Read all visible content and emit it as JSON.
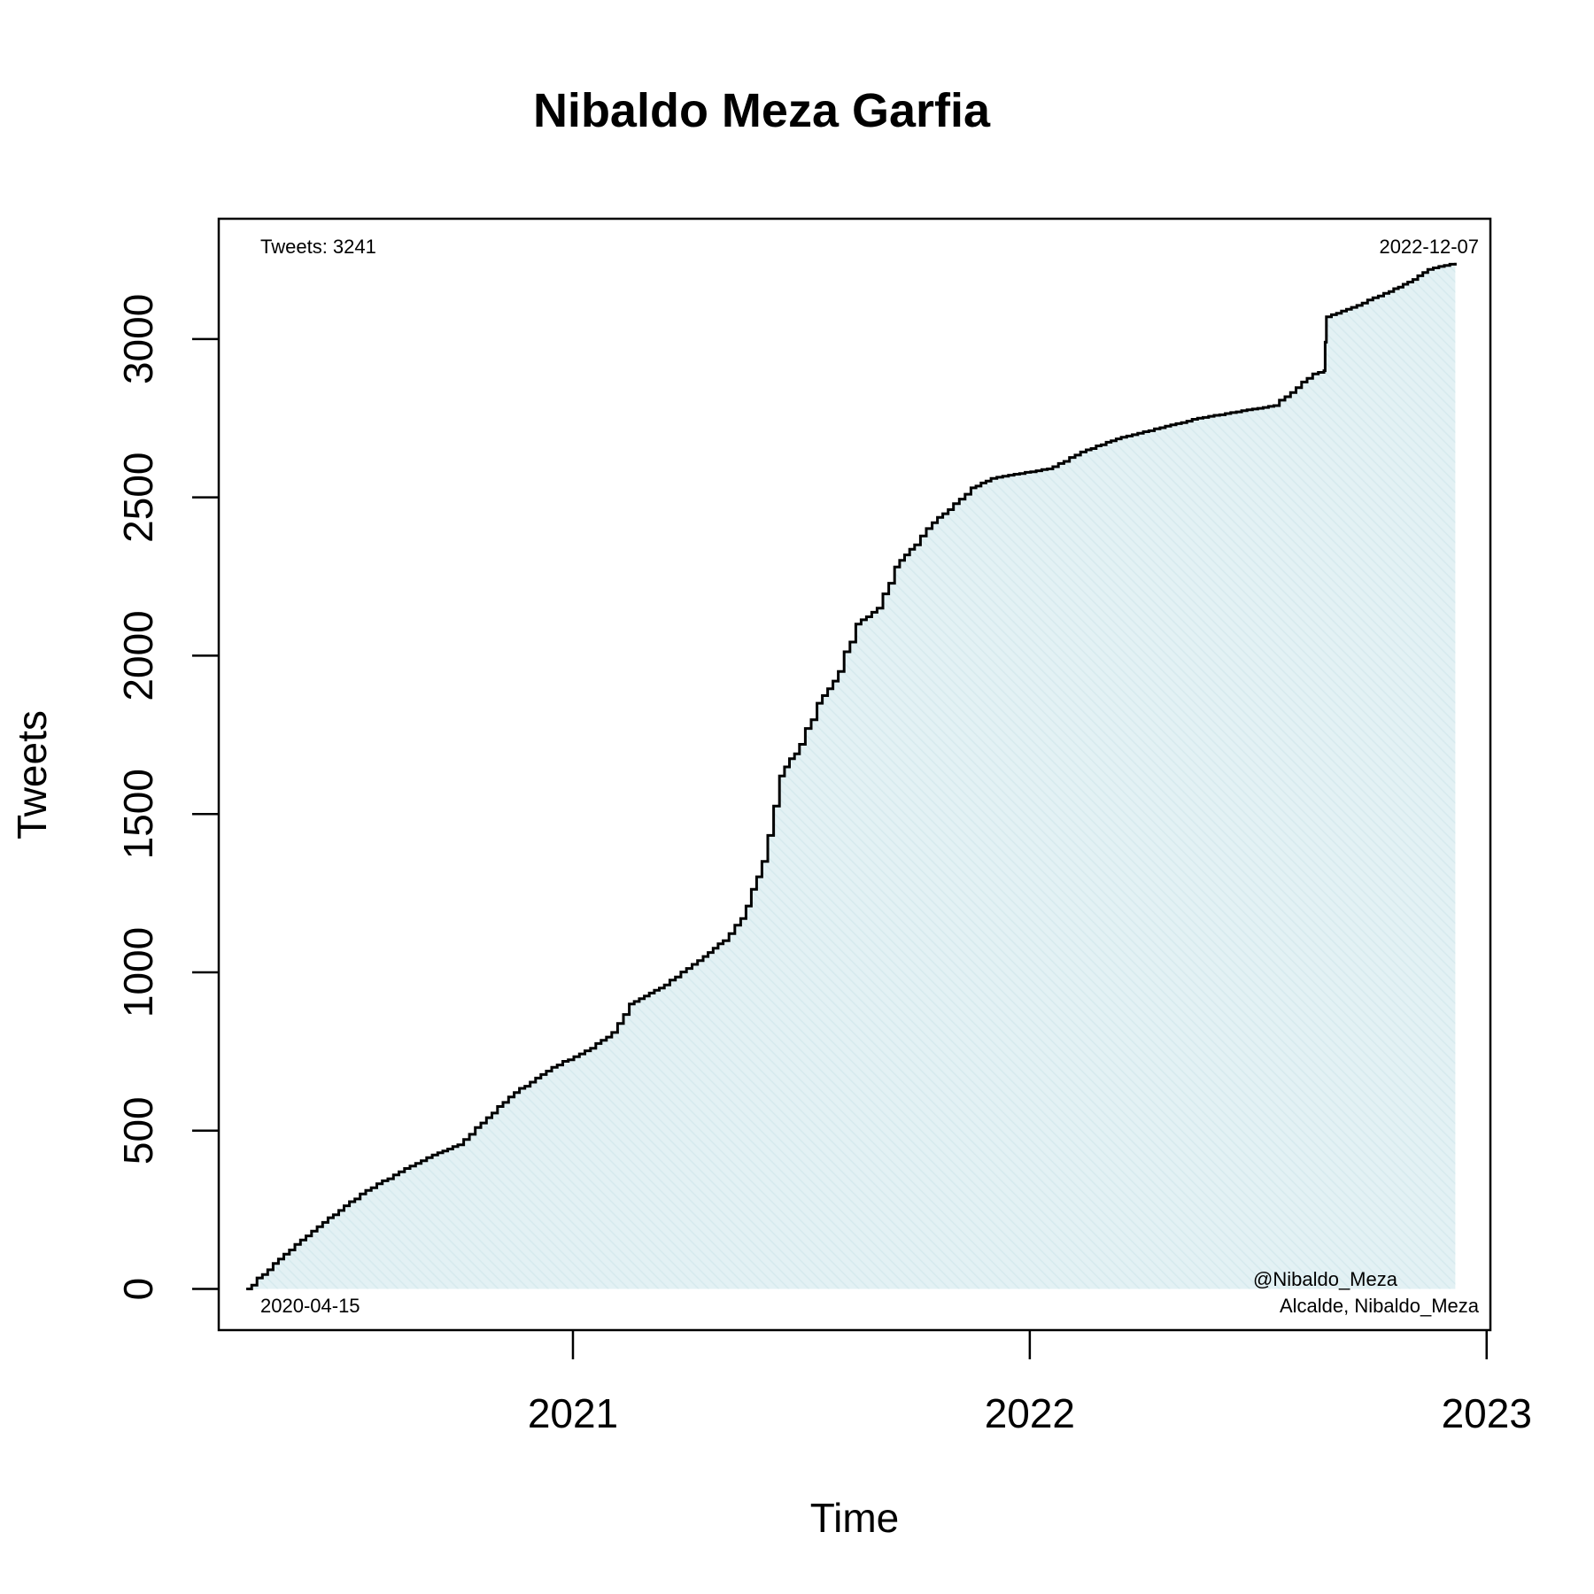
{
  "chart_data": {
    "type": "line",
    "title": "Nibaldo Meza Garfia",
    "xlabel": "Time",
    "ylabel": "Tweets",
    "xlim": [
      "2020-03-24",
      "2023-01-04"
    ],
    "ylim": [
      -130,
      3380
    ],
    "x_ticks": [
      "2021-01-01",
      "2022-01-01",
      "2023-01-01"
    ],
    "x_tick_labels": [
      "2021",
      "2022",
      "2023"
    ],
    "y_ticks": [
      0,
      500,
      1000,
      1500,
      2000,
      2500,
      3000
    ],
    "y_tick_labels": [
      "0",
      "500",
      "1000",
      "1500",
      "2000",
      "2500",
      "3000"
    ],
    "fill_color": "#e3f1f4",
    "line_color": "#000000",
    "annotations": {
      "top_left": "Tweets: 3241",
      "top_right": "2022-12-07",
      "bottom_left": "2020-04-15",
      "bottom_right_line1": "@Nibaldo_Meza",
      "bottom_right_line2": "Alcalde, Nibaldo_Meza"
    },
    "series": [
      {
        "x": [
          "2020-04-15",
          "2020-05-15",
          "2020-06-15",
          "2020-07-15",
          "2020-08-15",
          "2020-09-15",
          "2020-10-01",
          "2020-10-15",
          "2020-11-15",
          "2020-12-15",
          "2021-01-15",
          "2021-02-01",
          "2021-02-15",
          "2021-03-15",
          "2021-04-15",
          "2021-05-01",
          "2021-05-15",
          "2021-06-01",
          "2021-06-15",
          "2021-07-01",
          "2021-07-15",
          "2021-08-01",
          "2021-08-15",
          "2021-09-01",
          "2021-09-15",
          "2021-10-01",
          "2021-10-15",
          "2021-11-01",
          "2021-11-15",
          "2021-12-01",
          "2021-12-15",
          "2022-01-15",
          "2022-02-15",
          "2022-03-15",
          "2022-04-15",
          "2022-05-15",
          "2022-06-15",
          "2022-07-15",
          "2022-08-15",
          "2022-08-24",
          "2022-08-26",
          "2022-09-15",
          "2022-10-15",
          "2022-10-30",
          "2022-11-15",
          "2022-12-07"
        ],
        "values": [
          0,
          110,
          210,
          300,
          370,
          430,
          455,
          510,
          620,
          700,
          760,
          810,
          900,
          960,
          1050,
          1100,
          1170,
          1350,
          1620,
          1720,
          1850,
          1950,
          2100,
          2150,
          2280,
          2350,
          2420,
          2480,
          2530,
          2560,
          2570,
          2590,
          2650,
          2690,
          2720,
          2750,
          2770,
          2790,
          2890,
          2900,
          3070,
          3100,
          3150,
          3180,
          3220,
          3241
        ]
      }
    ]
  }
}
